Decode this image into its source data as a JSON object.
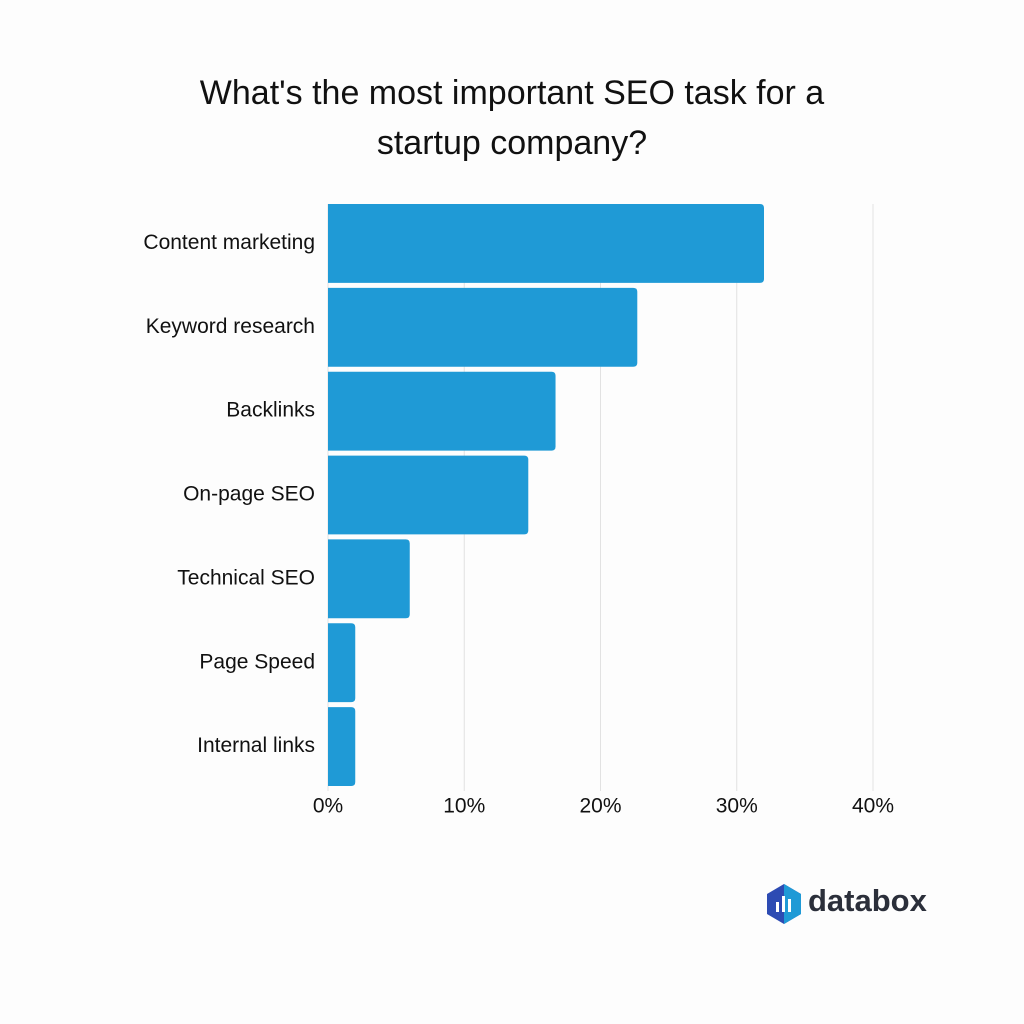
{
  "chart_data": {
    "type": "bar",
    "orientation": "horizontal",
    "title": "What's the most important SEO task for a startup company?",
    "categories": [
      "Content marketing",
      "Keyword research",
      "Backlinks",
      "On-page SEO",
      "Technical SEO",
      "Page Speed",
      "Internal links"
    ],
    "values": [
      32.0,
      22.7,
      16.7,
      14.7,
      6.0,
      2.0,
      2.0
    ],
    "color": "#1f9ad6",
    "xlim": [
      0,
      40
    ],
    "xticks": [
      {
        "value": 0,
        "label": "0%"
      },
      {
        "value": 10,
        "label": "10%"
      },
      {
        "value": 20,
        "label": "20%"
      },
      {
        "value": 30,
        "label": "30%"
      },
      {
        "value": 40,
        "label": "40%"
      }
    ],
    "grid": true
  },
  "logo_text": "databox"
}
